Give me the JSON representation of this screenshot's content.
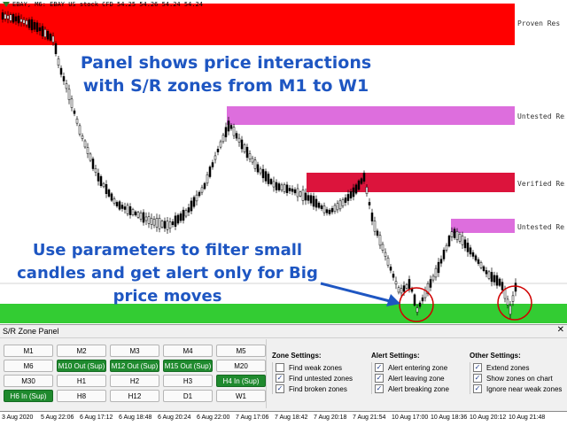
{
  "chart": {
    "symbol_label": "EBAY, M6: EBAY US stock CFD 54.25 54.26 54.24 54.24",
    "zones": [
      {
        "label": "Proven Res",
        "color": "#ff0000"
      },
      {
        "label": "Untested Res",
        "color": "#dd6edd"
      },
      {
        "label": "Verified Res",
        "color": "#dc143c"
      },
      {
        "label": "Untested Res",
        "color": "#dd6edd"
      },
      {
        "label": "",
        "color": "#33cc33"
      }
    ],
    "annotation_top": "Panel shows price interactions with S/R zones from M1 to W1",
    "annotation_bottom": "Use parameters to filter small candles and get alert only for Big price moves",
    "annotation_color": "#1e56c2",
    "time_labels": [
      "3 Aug 2020",
      "5 Aug 22:06",
      "6 Aug 17:12",
      "6 Aug 18:48",
      "6 Aug 20:24",
      "6 Aug 22:00",
      "7 Aug 17:06",
      "7 Aug 18:42",
      "7 Aug 20:18",
      "7 Aug 21:54",
      "10 Aug 17:00",
      "10 Aug 18:36",
      "10 Aug 20:12",
      "10 Aug 21:48"
    ]
  },
  "panel": {
    "title": "S/R Zone Panel",
    "close_icon": "close-icon",
    "timeframes": [
      {
        "label": "M1",
        "active": false
      },
      {
        "label": "M2",
        "active": false
      },
      {
        "label": "M3",
        "active": false
      },
      {
        "label": "M4",
        "active": false
      },
      {
        "label": "M5",
        "active": false
      },
      {
        "label": "M6",
        "active": false
      },
      {
        "label": "M10 Out (Sup)",
        "active": true
      },
      {
        "label": "M12 Out (Sup)",
        "active": true
      },
      {
        "label": "M15 Out (Sup)",
        "active": true
      },
      {
        "label": "M20",
        "active": false
      },
      {
        "label": "M30",
        "active": false
      },
      {
        "label": "H1",
        "active": false
      },
      {
        "label": "H2",
        "active": false
      },
      {
        "label": "H3",
        "active": false
      },
      {
        "label": "H4 In (Sup)",
        "active": true
      },
      {
        "label": "H6 In (Sup)",
        "active": true
      },
      {
        "label": "H8",
        "active": false
      },
      {
        "label": "H12",
        "active": false
      },
      {
        "label": "D1",
        "active": false
      },
      {
        "label": "W1",
        "active": false
      }
    ],
    "zone_settings": {
      "heading": "Zone Settings:",
      "options": [
        {
          "label": "Find weak zones",
          "checked": false
        },
        {
          "label": "Find untested zones",
          "checked": true
        },
        {
          "label": "Find broken zones",
          "checked": true
        }
      ]
    },
    "alert_settings": {
      "heading": "Alert Settings:",
      "options": [
        {
          "label": "Alert entering zone",
          "checked": true
        },
        {
          "label": "Alert leaving zone",
          "checked": true
        },
        {
          "label": "Alert breaking zone",
          "checked": true
        }
      ]
    },
    "other_settings": {
      "heading": "Other Settings:",
      "options": [
        {
          "label": "Extend zones",
          "checked": true
        },
        {
          "label": "Show zones on chart",
          "checked": true
        },
        {
          "label": "Ignore near weak zones",
          "checked": true
        }
      ]
    }
  }
}
